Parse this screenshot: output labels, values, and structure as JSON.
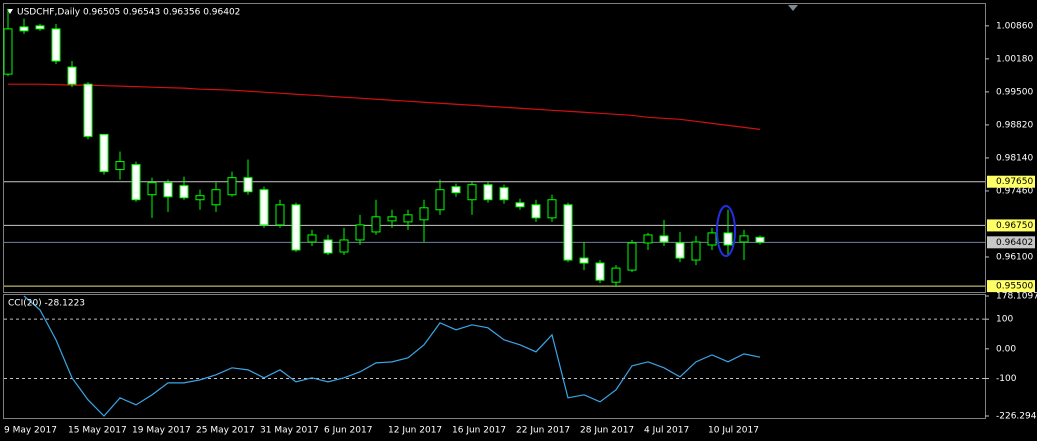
{
  "chart_data": [
    {
      "type": "candlestick",
      "title": "USDCHF,Daily  0.96505 0.96543 0.96356 0.96402",
      "categories": [
        "9 May 2017",
        null,
        null,
        null,
        "15 May 2017",
        null,
        null,
        null,
        "19 May 2017",
        null,
        null,
        null,
        "25 May 2017",
        null,
        null,
        null,
        "31 May 2017",
        null,
        null,
        null,
        "6 Jun 2017",
        null,
        null,
        null,
        "12 Jun 2017",
        null,
        null,
        null,
        "16 Jun 2017",
        null,
        null,
        null,
        "22 Jun 2017",
        null,
        null,
        null,
        "28 Jun 2017",
        null,
        null,
        null,
        "4 Jul 2017",
        null,
        null,
        null,
        "10 Jul 2017",
        null,
        null,
        null
      ],
      "open": [
        0.99866,
        1.00839,
        1.0086,
        1.00798,
        1.00011,
        0.99659,
        0.98624,
        0.979,
        0.98003,
        0.97382,
        0.97631,
        0.97569,
        0.97279,
        0.97175,
        0.97382,
        0.97734,
        0.97486,
        0.96761,
        0.97175,
        0.96409,
        0.96451,
        0.96202,
        0.96451,
        0.96616,
        0.96844,
        0.96823,
        0.96865,
        0.97072,
        0.97548,
        0.97279,
        0.97589,
        0.97527,
        0.97217,
        0.97175,
        0.96906,
        0.97175,
        0.96078,
        0.95975,
        0.95581,
        0.9583,
        0.96389,
        0.96534,
        0.96389,
        0.96037,
        0.96347,
        0.96596,
        0.96409,
        0.96505
      ],
      "high": [
        1.01212,
        1.01005,
        1.00901,
        1.00901,
        1.00136,
        0.99701,
        0.98624,
        0.98272,
        0.98065,
        0.97734,
        0.97693,
        0.97755,
        0.97486,
        0.97631,
        0.97858,
        0.98107,
        0.97548,
        0.97279,
        0.97217,
        0.96658,
        0.96554,
        0.96699,
        0.96968,
        0.97279,
        0.97072,
        0.97072,
        0.97279,
        0.97693,
        0.9761,
        0.97651,
        0.97651,
        0.97589,
        0.973,
        0.97279,
        0.97382,
        0.97217,
        0.96409,
        0.96037,
        0.95933,
        0.96451,
        0.96596,
        0.96865,
        0.96616,
        0.96534,
        0.96699,
        0.97072,
        0.96658,
        0.96543
      ],
      "low": [
        0.99825,
        1.00694,
        1.00757,
        1.00073,
        0.99597,
        0.98521,
        0.97796,
        0.97693,
        0.97237,
        0.96906,
        0.9703,
        0.97279,
        0.97072,
        0.9703,
        0.97341,
        0.97382,
        0.96699,
        0.96699,
        0.96202,
        0.96327,
        0.9614,
        0.9614,
        0.96347,
        0.96554,
        0.96699,
        0.96658,
        0.96409,
        0.96968,
        0.97341,
        0.96968,
        0.97217,
        0.97196,
        0.97072,
        0.96823,
        0.96823,
        0.95995,
        0.9583,
        0.95561,
        0.95478,
        0.9579,
        0.96244,
        0.96327,
        0.95995,
        0.95933,
        0.96244,
        0.9614,
        0.96037,
        0.96356
      ],
      "close": [
        1.00798,
        1.00757,
        1.00798,
        1.00136,
        0.99659,
        0.98583,
        0.97858,
        0.98065,
        0.97279,
        0.97631,
        0.97341,
        0.9732,
        0.97362,
        0.97486,
        0.97734,
        0.97444,
        0.96761,
        0.97175,
        0.96244,
        0.96554,
        0.96182,
        0.96451,
        0.96761,
        0.96927,
        0.96927,
        0.96968,
        0.97113,
        0.97486,
        0.97424,
        0.97589,
        0.97279,
        0.97279,
        0.97134,
        0.96906,
        0.97279,
        0.96037,
        0.95975,
        0.95623,
        0.95871,
        0.96389,
        0.96554,
        0.96409,
        0.96078,
        0.96409,
        0.96596,
        0.96347,
        0.96534,
        0.96402
      ],
      "bull_color": "#000000",
      "bear_color": "#ffffff",
      "wick_color": "#00ff00",
      "ma": {
        "color": "#d01010",
        "values": [
          0.99659,
          0.99659,
          0.99659,
          0.99649,
          0.99639,
          0.99639,
          0.99628,
          0.99618,
          0.99608,
          0.99597,
          0.99587,
          0.99577,
          0.99556,
          0.99546,
          0.99535,
          0.99515,
          0.99494,
          0.99473,
          0.99452,
          0.99432,
          0.99411,
          0.9939,
          0.9937,
          0.99349,
          0.99328,
          0.99308,
          0.99287,
          0.99266,
          0.99245,
          0.99225,
          0.99204,
          0.99183,
          0.99163,
          0.99142,
          0.99121,
          0.99101,
          0.9908,
          0.99059,
          0.99038,
          0.99018,
          0.98976,
          0.98956,
          0.98935,
          0.98894,
          0.98852,
          0.98811,
          0.98769,
          0.98728
        ]
      },
      "ylim": [
        0.9542,
        1.0131
      ],
      "yticks": [
        {
          "value": 1.0086,
          "label": "1.00860"
        },
        {
          "value": 1.0018,
          "label": "1.00180"
        },
        {
          "value": 0.995,
          "label": "0.99500"
        },
        {
          "value": 0.9882,
          "label": "0.98820"
        },
        {
          "value": 0.9814,
          "label": "0.98140"
        },
        {
          "value": 0.9746,
          "label": "0.97460"
        },
        {
          "value": 0.961,
          "label": "0.96100"
        }
      ],
      "levels": [
        {
          "value": 0.9765,
          "label": "0.97650",
          "line_color": "#c8c8c8",
          "label_color": "#ffff66"
        },
        {
          "value": 0.9675,
          "label": "0.96750",
          "line_color": "#c8c8c8",
          "label_color": "#ffff66"
        },
        {
          "value": 0.96402,
          "label": "0.96402",
          "line_color": "#7080a0",
          "label_color": "#c8c8c8"
        },
        {
          "value": 0.955,
          "label": "0.95500",
          "line_color": "#e8e080",
          "label_color": "#ffff66"
        }
      ]
    },
    {
      "type": "line",
      "title": "CCI(20) -28.1223",
      "color": "#3aa6e8",
      "values": [
        null,
        178.1097,
        131.4,
        30.3,
        -97.7,
        -171.9,
        -226.2949,
        -165.1,
        -188.7,
        -155,
        -114.6,
        -114.6,
        -104.5,
        -87.6,
        -64,
        -70.8,
        -97.7,
        -70.8,
        -111.2,
        -97.7,
        -111.2,
        -97.7,
        -77.5,
        -47.2,
        -43.8,
        -30.3,
        13.5,
        87.6,
        64,
        80.9,
        70.8,
        30.3,
        13.5,
        -10.1,
        47.2,
        -165.1,
        -155,
        -178.6,
        -138.2,
        -57.3,
        -43.8,
        -64,
        -94.4,
        -43.8,
        -20.2,
        -43.8,
        -16.9,
        -28.1223
      ],
      "ylim": [
        -226.2949,
        178.1097
      ],
      "yticks": [
        178.1097,
        100,
        {
          "value": 0,
          "label": "0.00"
        },
        -100,
        -226.2949
      ],
      "levels": [
        100,
        -100
      ]
    }
  ]
}
